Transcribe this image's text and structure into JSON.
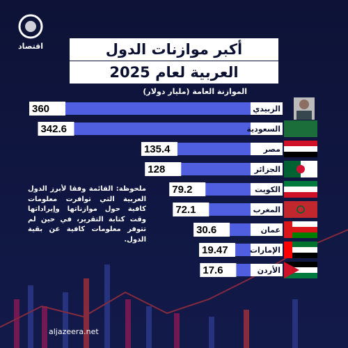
{
  "logo": "اقتصاد",
  "note": "ملحوظة: القائمة وفقا لأبرز الدول العربية التي توافرت معلومات كافية حول موازناتها وإيراداتها وقت كتابة التقرير، في حين لم تتوفر معلومات كافية عن بقية الدول.",
  "source": "aljazeera.net",
  "chart_data": {
    "type": "bar",
    "title": [
      "أكبر موازنات الدول",
      "العربية لعام 2025"
    ],
    "subtitle": "الموازنة العامة (مليار دولار)",
    "categories": [
      "الزبيدي",
      "السعودية",
      "مصر",
      "الجزائر",
      "الكويت",
      "المغرب",
      "عمان",
      "الإمارات",
      "الأردن"
    ],
    "values": [
      360,
      342.6,
      135.4,
      128,
      79.2,
      72.1,
      30.6,
      19.47,
      17.6
    ],
    "color": "#4f5fe0"
  }
}
